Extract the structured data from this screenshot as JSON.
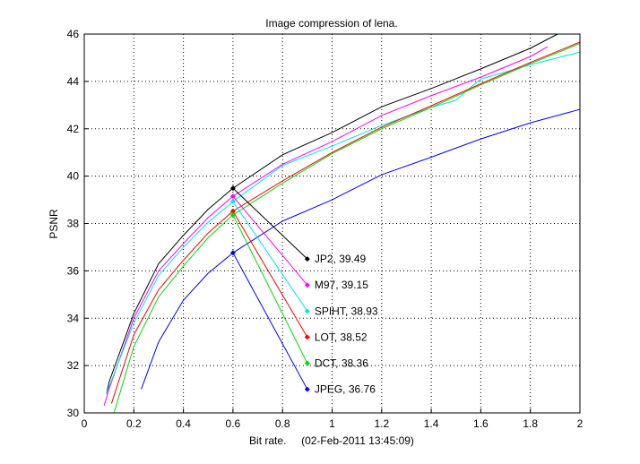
{
  "chart_data": {
    "type": "line",
    "title": "Image compression of lena.",
    "xlabel": "Bit rate.     (02-Feb-2011 13:45:09)",
    "ylabel": "PSNR",
    "xlim": [
      0,
      2
    ],
    "ylim": [
      30,
      46
    ],
    "xticks": [
      "0",
      "0.2",
      "0.4",
      "0.6",
      "0.8",
      "1",
      "1.2",
      "1.4",
      "1.6",
      "1.8",
      "2"
    ],
    "yticks": [
      "30",
      "32",
      "34",
      "36",
      "38",
      "40",
      "42",
      "44",
      "46"
    ],
    "grid": true,
    "series": [
      {
        "name": "JP2",
        "color": "#000000",
        "x": [
          0.09,
          0.1,
          0.2,
          0.3,
          0.4,
          0.5,
          0.6,
          0.8,
          1.0,
          1.2,
          1.4,
          1.6,
          1.8,
          1.91
        ],
        "y": [
          30.8,
          31.3,
          34.2,
          36.3,
          37.5,
          38.6,
          39.49,
          40.9,
          41.84,
          42.93,
          43.7,
          44.53,
          45.4,
          46.0
        ],
        "label": "JP2, 39.49",
        "label_y": 36.5
      },
      {
        "name": "M97",
        "color": "#ff00ff",
        "x": [
          0.08,
          0.1,
          0.2,
          0.3,
          0.4,
          0.5,
          0.6,
          0.8,
          1.0,
          1.2,
          1.4,
          1.6,
          1.8,
          1.87
        ],
        "y": [
          30.3,
          31.0,
          34.0,
          36.0,
          37.15,
          38.25,
          39.15,
          40.5,
          41.46,
          42.56,
          43.4,
          44.18,
          45.05,
          45.47
        ],
        "label": "M97, 39.15",
        "label_y": 35.4
      },
      {
        "name": "SPIHT",
        "color": "#00e5ee",
        "x": [
          0.09,
          0.1,
          0.2,
          0.3,
          0.4,
          0.5,
          0.6,
          0.8,
          1.0,
          1.2,
          1.4,
          1.5,
          1.54,
          1.6,
          1.8,
          2.0
        ],
        "y": [
          30.8,
          31.1,
          33.8,
          35.8,
          37.0,
          38.05,
          38.93,
          40.45,
          41.27,
          42.14,
          42.9,
          43.2,
          43.58,
          44.1,
          44.7,
          45.24
        ],
        "label": "SPIHT, 38.93",
        "label_y": 34.3
      },
      {
        "name": "LOT",
        "color": "#ff0000",
        "x": [
          0.11,
          0.2,
          0.3,
          0.4,
          0.5,
          0.6,
          0.8,
          1.0,
          1.2,
          1.4,
          1.6,
          1.8,
          2.0
        ],
        "y": [
          30.4,
          33.3,
          35.2,
          36.45,
          37.6,
          38.52,
          39.8,
          41.0,
          42.07,
          42.97,
          43.9,
          44.8,
          45.66
        ],
        "label": "LOT, 38.52",
        "label_y": 33.2
      },
      {
        "name": "DCT",
        "color": "#00dd00",
        "x": [
          0.12,
          0.2,
          0.3,
          0.4,
          0.5,
          0.6,
          0.8,
          1.0,
          1.2,
          1.4,
          1.6,
          1.8,
          2.0
        ],
        "y": [
          30.0,
          32.8,
          34.9,
          36.2,
          37.4,
          38.36,
          39.7,
          40.95,
          42.0,
          42.9,
          43.85,
          44.75,
          45.6
        ],
        "label": "DCT, 38.36",
        "label_y": 32.1
      },
      {
        "name": "JPEG",
        "color": "#0000ff",
        "x": [
          0.23,
          0.3,
          0.4,
          0.5,
          0.6,
          0.8,
          1.0,
          1.2,
          1.4,
          1.6,
          1.8,
          2.0
        ],
        "y": [
          31.0,
          33.0,
          34.76,
          35.9,
          36.76,
          38.1,
          39.0,
          40.06,
          40.8,
          41.57,
          42.25,
          42.82
        ],
        "label": "JPEG, 36.76",
        "label_y": 31.0
      }
    ],
    "annotation_x": [
      0.6,
      0.9
    ]
  }
}
